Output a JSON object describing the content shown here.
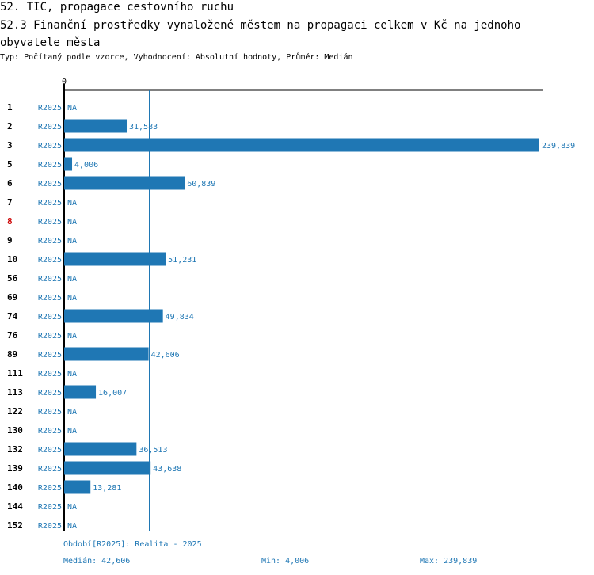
{
  "title": "52. TIC, propagace cestovního ruchu",
  "subtitle": "52.3 Finanční prostředky vynaložené městem na propagaci celkem v Kč na jednoho obyvatele města",
  "meta": "Typ: Počítaný podle vzorce, Vyhodnocení: Absolutní hodnoty, Průměr: Medián",
  "colors": {
    "bar": "#1f77b4",
    "highlight": "#cc0000",
    "axis": "#000000",
    "text": "#000000"
  },
  "chart_data": {
    "type": "bar",
    "orientation": "horizontal",
    "axis_zero_label": "0",
    "xlim": [
      0,
      239839
    ],
    "median_line": 42606,
    "series_label": "R2025",
    "na_label": "NA",
    "highlighted_category": "8",
    "rows": [
      {
        "category": "1",
        "series": "R2025",
        "value": null,
        "label": "NA"
      },
      {
        "category": "2",
        "series": "R2025",
        "value": 31583,
        "label": "31,583"
      },
      {
        "category": "3",
        "series": "R2025",
        "value": 239839,
        "label": "239,839"
      },
      {
        "category": "5",
        "series": "R2025",
        "value": 4006,
        "label": "4,006"
      },
      {
        "category": "6",
        "series": "R2025",
        "value": 60839,
        "label": "60,839"
      },
      {
        "category": "7",
        "series": "R2025",
        "value": null,
        "label": "NA"
      },
      {
        "category": "8",
        "series": "R2025",
        "value": null,
        "label": "NA"
      },
      {
        "category": "9",
        "series": "R2025",
        "value": null,
        "label": "NA"
      },
      {
        "category": "10",
        "series": "R2025",
        "value": 51231,
        "label": "51,231"
      },
      {
        "category": "56",
        "series": "R2025",
        "value": null,
        "label": "NA"
      },
      {
        "category": "69",
        "series": "R2025",
        "value": null,
        "label": "NA"
      },
      {
        "category": "74",
        "series": "R2025",
        "value": 49834,
        "label": "49,834"
      },
      {
        "category": "76",
        "series": "R2025",
        "value": null,
        "label": "NA"
      },
      {
        "category": "89",
        "series": "R2025",
        "value": 42606,
        "label": "42,606"
      },
      {
        "category": "111",
        "series": "R2025",
        "value": null,
        "label": "NA"
      },
      {
        "category": "113",
        "series": "R2025",
        "value": 16007,
        "label": "16,007"
      },
      {
        "category": "122",
        "series": "R2025",
        "value": null,
        "label": "NA"
      },
      {
        "category": "130",
        "series": "R2025",
        "value": null,
        "label": "NA"
      },
      {
        "category": "132",
        "series": "R2025",
        "value": 36513,
        "label": "36,513"
      },
      {
        "category": "139",
        "series": "R2025",
        "value": 43638,
        "label": "43,638"
      },
      {
        "category": "140",
        "series": "R2025",
        "value": 13281,
        "label": "13,281"
      },
      {
        "category": "144",
        "series": "R2025",
        "value": null,
        "label": "NA"
      },
      {
        "category": "152",
        "series": "R2025",
        "value": null,
        "label": "NA"
      }
    ]
  },
  "footer": {
    "period": "Období[R2025]: Realita - 2025",
    "median": "Medián: 42,606",
    "min": "Min: 4,006",
    "max": "Max: 239,839"
  }
}
